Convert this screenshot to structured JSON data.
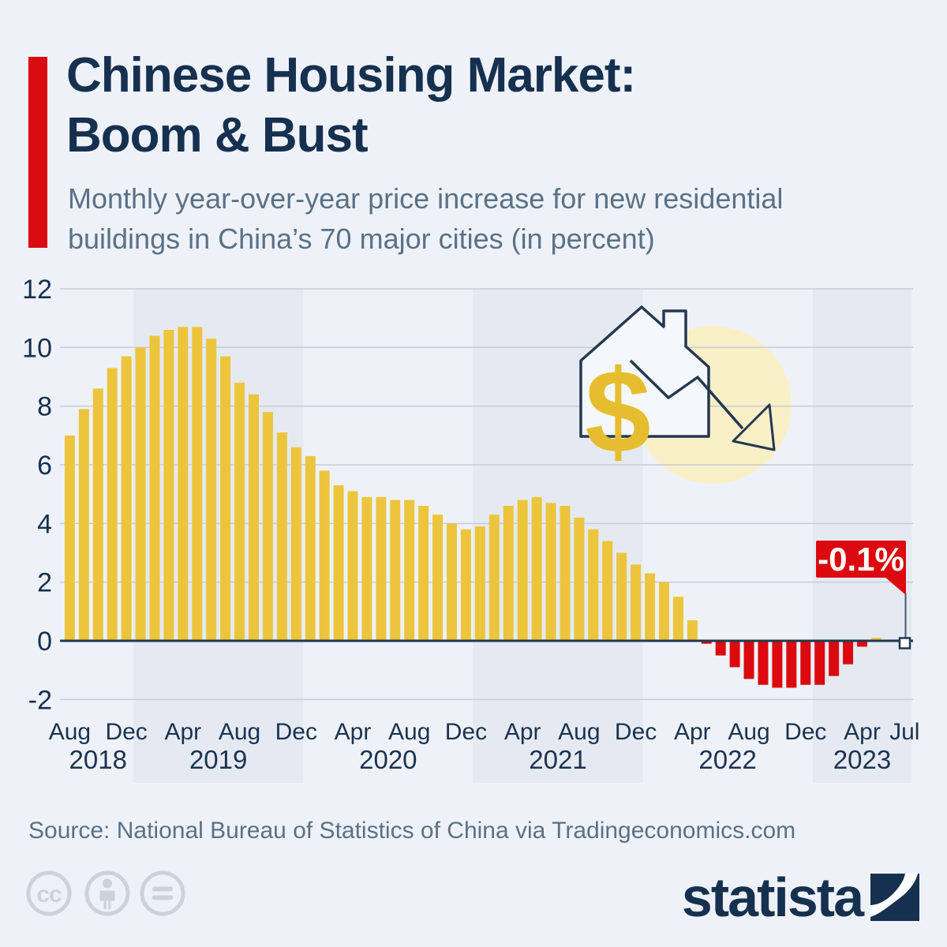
{
  "page": {
    "background": "#eef2f8",
    "accent_color": "#d90c0f",
    "navy": "#16304f",
    "grey_text": "#5a7186"
  },
  "header": {
    "title_line1": "Chinese Housing Market:",
    "title_line2": "Boom & Bust",
    "subtitle_line1": "Monthly year-over-year price increase for new residential",
    "subtitle_line2": "buildings in China’s 70 major cities (in percent)"
  },
  "chart_data": {
    "type": "bar",
    "title": "Monthly year-over-year price increase for new residential buildings in China's 70 major cities (in percent)",
    "unit": "percent",
    "x_start": "Aug 2018",
    "x_end": "Jul 2023",
    "values": [
      7.0,
      7.9,
      8.6,
      9.3,
      9.7,
      10.0,
      10.4,
      10.6,
      10.7,
      10.7,
      10.3,
      9.7,
      8.8,
      8.4,
      7.8,
      7.1,
      6.6,
      6.3,
      5.8,
      5.3,
      5.1,
      4.9,
      4.9,
      4.8,
      4.8,
      4.6,
      4.3,
      4.0,
      3.8,
      3.9,
      4.3,
      4.6,
      4.8,
      4.9,
      4.7,
      4.6,
      4.2,
      3.8,
      3.4,
      3.0,
      2.6,
      2.3,
      2.0,
      1.5,
      0.7,
      -0.1,
      -0.5,
      -0.9,
      -1.3,
      -1.5,
      -1.6,
      -1.6,
      -1.5,
      -1.5,
      -1.2,
      -0.8,
      -0.2,
      0.1,
      0.0,
      -0.1
    ],
    "ylim": [
      -2,
      12
    ],
    "yticks": [
      12,
      10,
      8,
      6,
      4,
      2,
      0,
      -2
    ],
    "x_ticks": [
      {
        "i": 0,
        "label": "Aug"
      },
      {
        "i": 4,
        "label": "Dec"
      },
      {
        "i": 8,
        "label": "Apr"
      },
      {
        "i": 12,
        "label": "Aug"
      },
      {
        "i": 16,
        "label": "Dec"
      },
      {
        "i": 20,
        "label": "Apr"
      },
      {
        "i": 24,
        "label": "Aug"
      },
      {
        "i": 28,
        "label": "Dec"
      },
      {
        "i": 32,
        "label": "Apr"
      },
      {
        "i": 36,
        "label": "Aug"
      },
      {
        "i": 40,
        "label": "Dec"
      },
      {
        "i": 44,
        "label": "Apr"
      },
      {
        "i": 48,
        "label": "Aug"
      },
      {
        "i": 52,
        "label": "Dec"
      },
      {
        "i": 56,
        "label": "Apr"
      },
      {
        "i": 59,
        "label": "Jul"
      }
    ],
    "year_bands": [
      {
        "label": "2018",
        "from": 0,
        "to": 4,
        "shaded": false
      },
      {
        "label": "2019",
        "from": 5,
        "to": 16,
        "shaded": true
      },
      {
        "label": "2020",
        "from": 17,
        "to": 28,
        "shaded": false
      },
      {
        "label": "2021",
        "from": 29,
        "to": 40,
        "shaded": true
      },
      {
        "label": "2022",
        "from": 41,
        "to": 52,
        "shaded": false
      },
      {
        "label": "2023",
        "from": 53,
        "to": 59,
        "shaded": true
      }
    ],
    "annotation": {
      "label": "-0.1%",
      "index": 59,
      "value": -0.1
    },
    "colors": {
      "positive_bar": "#ecc53d",
      "negative_bar": "#dc0a0e",
      "band": "#e5eaf2",
      "gridline": "#c6ccd6",
      "zero_line": "#24384e",
      "callout_bg": "#dc0a0e",
      "callout_text": "#ffffff",
      "icon_circle": "#faf0c8",
      "dollar": "#e6bd2f"
    },
    "grid": true,
    "legend": false
  },
  "footer": {
    "source": "Source: National Bureau of Statistics of China via Tradingeconomics.com",
    "brand": "statista",
    "license_icons": [
      "cc",
      "attribution",
      "nd"
    ]
  }
}
